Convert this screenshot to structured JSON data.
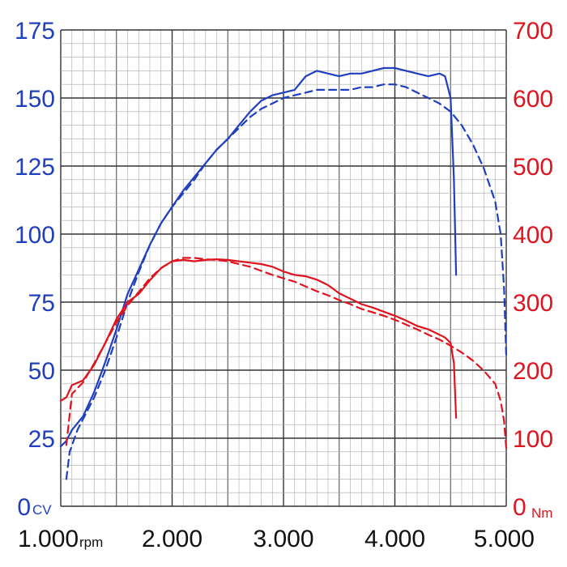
{
  "chart_data": {
    "type": "line",
    "xlim": [
      1000,
      5000
    ],
    "ylim_left": [
      0,
      175
    ],
    "ylim_right": [
      0,
      700
    ],
    "x_ticks": [
      1000,
      2000,
      3000,
      4000,
      5000
    ],
    "x_tick_labels": [
      "1.000",
      "2.000",
      "3.000",
      "4.000",
      "5.000"
    ],
    "x_unit": "rpm",
    "left_ticks": [
      0,
      25,
      50,
      75,
      100,
      125,
      150,
      175
    ],
    "left_tick_labels": [
      "0",
      "25",
      "50",
      "75",
      "100",
      "125",
      "150",
      "175"
    ],
    "left_unit": "CV",
    "right_ticks": [
      0,
      100,
      200,
      300,
      400,
      500,
      600,
      700
    ],
    "right_tick_labels": [
      "0",
      "100",
      "200",
      "300",
      "400",
      "500",
      "600",
      "700"
    ],
    "right_unit": "Nm",
    "grid": true,
    "colors": {
      "power": "#1f3fbf",
      "torque": "#e0141e",
      "grid_major": "#333333",
      "grid_minor": "#aaaaaa"
    },
    "series": [
      {
        "axis": "left",
        "color": "#1f3fbf",
        "style": "solid",
        "points": [
          [
            1000,
            22
          ],
          [
            1050,
            24
          ],
          [
            1100,
            28
          ],
          [
            1200,
            33
          ],
          [
            1300,
            42
          ],
          [
            1400,
            53
          ],
          [
            1500,
            65
          ],
          [
            1600,
            78
          ],
          [
            1700,
            87
          ],
          [
            1800,
            96
          ],
          [
            1900,
            104
          ],
          [
            2000,
            110
          ],
          [
            2100,
            116
          ],
          [
            2200,
            121
          ],
          [
            2300,
            126
          ],
          [
            2400,
            131
          ],
          [
            2500,
            135
          ],
          [
            2600,
            140
          ],
          [
            2700,
            145
          ],
          [
            2800,
            149
          ],
          [
            2900,
            151
          ],
          [
            3000,
            152
          ],
          [
            3100,
            153
          ],
          [
            3200,
            158
          ],
          [
            3300,
            160
          ],
          [
            3400,
            159
          ],
          [
            3500,
            158
          ],
          [
            3600,
            159
          ],
          [
            3700,
            159
          ],
          [
            3800,
            160
          ],
          [
            3900,
            161
          ],
          [
            4000,
            161
          ],
          [
            4100,
            160
          ],
          [
            4200,
            159
          ],
          [
            4300,
            158
          ],
          [
            4400,
            159
          ],
          [
            4450,
            158
          ],
          [
            4500,
            150
          ],
          [
            4530,
            120
          ],
          [
            4550,
            85
          ]
        ]
      },
      {
        "axis": "left",
        "color": "#1f3fbf",
        "style": "dashed",
        "points": [
          [
            1050,
            10
          ],
          [
            1080,
            20
          ],
          [
            1150,
            28
          ],
          [
            1300,
            40
          ],
          [
            1400,
            50
          ],
          [
            1500,
            62
          ],
          [
            1600,
            75
          ],
          [
            1700,
            86
          ],
          [
            1800,
            96
          ],
          [
            1900,
            104
          ],
          [
            2000,
            110
          ],
          [
            2100,
            115
          ],
          [
            2200,
            120
          ],
          [
            2300,
            126
          ],
          [
            2400,
            131
          ],
          [
            2500,
            135
          ],
          [
            2600,
            139
          ],
          [
            2700,
            143
          ],
          [
            2800,
            146
          ],
          [
            2900,
            148
          ],
          [
            3000,
            150
          ],
          [
            3100,
            151
          ],
          [
            3200,
            152
          ],
          [
            3300,
            153
          ],
          [
            3400,
            153
          ],
          [
            3500,
            153
          ],
          [
            3600,
            153
          ],
          [
            3700,
            154
          ],
          [
            3800,
            154
          ],
          [
            3900,
            155
          ],
          [
            4000,
            155
          ],
          [
            4100,
            154
          ],
          [
            4200,
            152
          ],
          [
            4300,
            150
          ],
          [
            4400,
            148
          ],
          [
            4500,
            145
          ],
          [
            4600,
            140
          ],
          [
            4700,
            133
          ],
          [
            4800,
            124
          ],
          [
            4900,
            112
          ],
          [
            4950,
            100
          ],
          [
            4980,
            80
          ],
          [
            5000,
            55
          ]
        ]
      },
      {
        "axis": "right",
        "color": "#e0141e",
        "style": "solid",
        "points": [
          [
            1000,
            155
          ],
          [
            1050,
            160
          ],
          [
            1100,
            178
          ],
          [
            1200,
            185
          ],
          [
            1300,
            208
          ],
          [
            1400,
            240
          ],
          [
            1500,
            275
          ],
          [
            1600,
            300
          ],
          [
            1700,
            312
          ],
          [
            1800,
            332
          ],
          [
            1900,
            350
          ],
          [
            2000,
            360
          ],
          [
            2100,
            362
          ],
          [
            2200,
            360
          ],
          [
            2300,
            362
          ],
          [
            2400,
            363
          ],
          [
            2500,
            362
          ],
          [
            2600,
            360
          ],
          [
            2700,
            358
          ],
          [
            2800,
            356
          ],
          [
            2900,
            352
          ],
          [
            3000,
            345
          ],
          [
            3100,
            340
          ],
          [
            3200,
            338
          ],
          [
            3300,
            333
          ],
          [
            3400,
            325
          ],
          [
            3500,
            313
          ],
          [
            3600,
            305
          ],
          [
            3700,
            297
          ],
          [
            3800,
            292
          ],
          [
            3900,
            286
          ],
          [
            4000,
            280
          ],
          [
            4100,
            273
          ],
          [
            4200,
            265
          ],
          [
            4300,
            260
          ],
          [
            4400,
            252
          ],
          [
            4450,
            248
          ],
          [
            4500,
            240
          ],
          [
            4530,
            210
          ],
          [
            4550,
            130
          ]
        ]
      },
      {
        "axis": "right",
        "color": "#e0141e",
        "style": "dashed",
        "points": [
          [
            1050,
            90
          ],
          [
            1080,
            135
          ],
          [
            1100,
            165
          ],
          [
            1200,
            182
          ],
          [
            1300,
            210
          ],
          [
            1400,
            240
          ],
          [
            1500,
            270
          ],
          [
            1600,
            295
          ],
          [
            1700,
            315
          ],
          [
            1800,
            335
          ],
          [
            1900,
            350
          ],
          [
            2000,
            360
          ],
          [
            2100,
            365
          ],
          [
            2200,
            365
          ],
          [
            2300,
            363
          ],
          [
            2400,
            362
          ],
          [
            2500,
            360
          ],
          [
            2600,
            356
          ],
          [
            2700,
            352
          ],
          [
            2800,
            346
          ],
          [
            2900,
            340
          ],
          [
            3000,
            335
          ],
          [
            3100,
            330
          ],
          [
            3200,
            323
          ],
          [
            3300,
            316
          ],
          [
            3400,
            310
          ],
          [
            3500,
            303
          ],
          [
            3600,
            297
          ],
          [
            3700,
            290
          ],
          [
            3800,
            285
          ],
          [
            3900,
            280
          ],
          [
            4000,
            274
          ],
          [
            4100,
            267
          ],
          [
            4200,
            260
          ],
          [
            4300,
            252
          ],
          [
            4400,
            245
          ],
          [
            4500,
            236
          ],
          [
            4600,
            226
          ],
          [
            4700,
            214
          ],
          [
            4800,
            199
          ],
          [
            4900,
            180
          ],
          [
            4950,
            155
          ],
          [
            4980,
            125
          ],
          [
            5000,
            85
          ]
        ]
      }
    ]
  }
}
